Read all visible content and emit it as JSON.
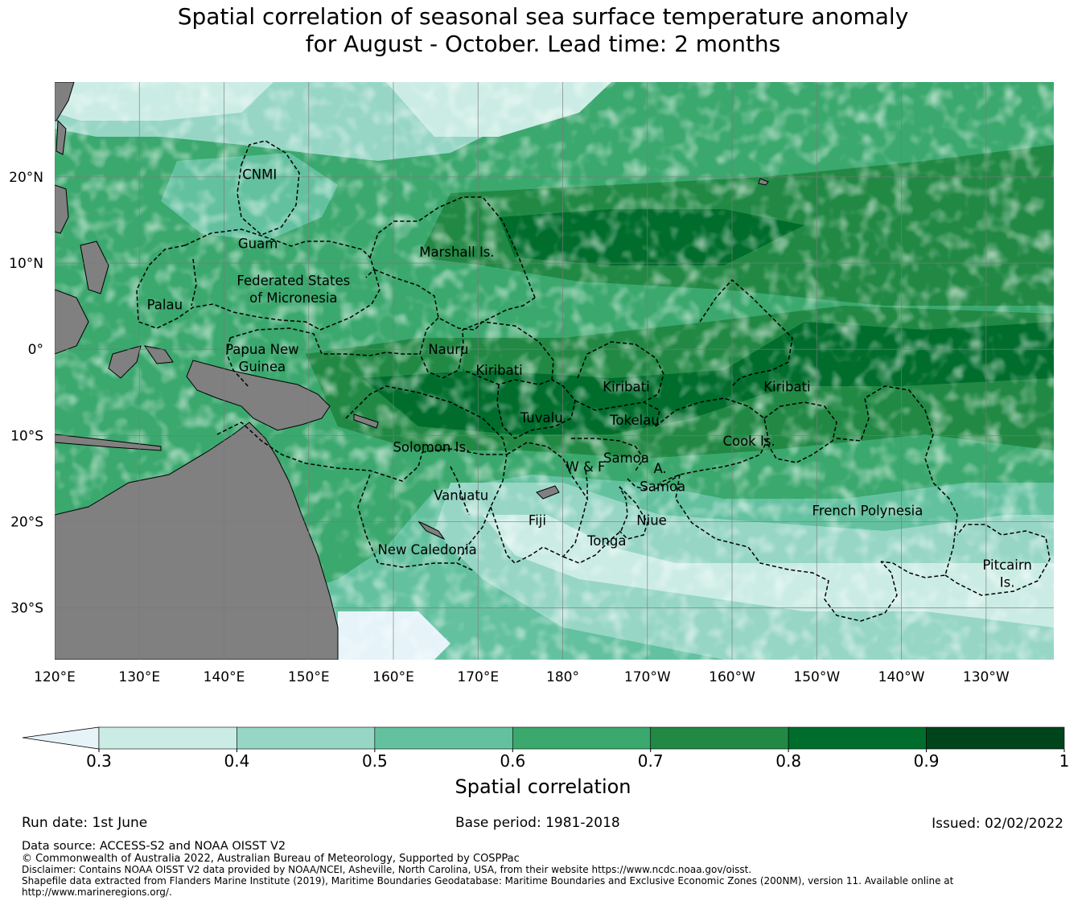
{
  "title_line1": "Spatial correlation of seasonal sea surface temperature anomaly",
  "title_line2": "for August - October. Lead time: 2 months",
  "map": {
    "lon_range": [
      120,
      238
    ],
    "lat_range": [
      -36,
      31
    ],
    "lon_ticks": [
      {
        "lon": 120,
        "label": "120°E"
      },
      {
        "lon": 130,
        "label": "130°E"
      },
      {
        "lon": 140,
        "label": "140°E"
      },
      {
        "lon": 150,
        "label": "150°E"
      },
      {
        "lon": 160,
        "label": "160°E"
      },
      {
        "lon": 170,
        "label": "170°E"
      },
      {
        "lon": 180,
        "label": "180°"
      },
      {
        "lon": 190,
        "label": "170°W"
      },
      {
        "lon": 200,
        "label": "160°W"
      },
      {
        "lon": 210,
        "label": "150°W"
      },
      {
        "lon": 220,
        "label": "140°W"
      },
      {
        "lon": 230,
        "label": "130°W"
      }
    ],
    "lat_ticks": [
      {
        "lat": 20,
        "label": "20°N"
      },
      {
        "lat": 10,
        "label": "10°N"
      },
      {
        "lat": 0,
        "label": "0°"
      },
      {
        "lat": -10,
        "label": "10°S"
      },
      {
        "lat": -20,
        "label": "20°S"
      },
      {
        "lat": -30,
        "label": "30°S"
      }
    ],
    "region_labels": [
      {
        "text": "CNMI",
        "lon": 144.2,
        "lat": 20.3
      },
      {
        "text": "Guam",
        "lon": 144.0,
        "lat": 12.3
      },
      {
        "text": "Marshall Is.",
        "lon": 167.5,
        "lat": 11.3
      },
      {
        "text": "Federated States",
        "lon": 148.2,
        "lat": 8.0
      },
      {
        "text": "of Micronesia",
        "lon": 148.2,
        "lat": 6.0
      },
      {
        "text": "Palau",
        "lon": 133.0,
        "lat": 5.2
      },
      {
        "text": "Nauru",
        "lon": 166.5,
        "lat": 0.0
      },
      {
        "text": "Papua New",
        "lon": 144.5,
        "lat": 0.0
      },
      {
        "text": "Guinea",
        "lon": 144.5,
        "lat": -2.0
      },
      {
        "text": "Kiribati",
        "lon": 172.5,
        "lat": -2.4
      },
      {
        "text": "Kiribati",
        "lon": 187.5,
        "lat": -4.3
      },
      {
        "text": "Kiribati",
        "lon": 206.5,
        "lat": -4.3
      },
      {
        "text": "Tuvalu",
        "lon": 177.5,
        "lat": -7.9
      },
      {
        "text": "Tokelau",
        "lon": 188.5,
        "lat": -8.2
      },
      {
        "text": "Cook Is.",
        "lon": 202.0,
        "lat": -10.6
      },
      {
        "text": "Solomon Is.",
        "lon": 164.5,
        "lat": -11.3
      },
      {
        "text": "Samoa",
        "lon": 187.5,
        "lat": -12.6
      },
      {
        "text": "W & F",
        "lon": 182.7,
        "lat": -13.6
      },
      {
        "text": "A.",
        "lon": 191.5,
        "lat": -13.8
      },
      {
        "text": "Samoa",
        "lon": 191.8,
        "lat": -15.9
      },
      {
        "text": "Vanuatu",
        "lon": 168.0,
        "lat": -16.9
      },
      {
        "text": "French Polynesia",
        "lon": 216.0,
        "lat": -18.7
      },
      {
        "text": "Fiji",
        "lon": 177.0,
        "lat": -19.8
      },
      {
        "text": "Niue",
        "lon": 190.5,
        "lat": -19.8
      },
      {
        "text": "Tonga",
        "lon": 185.2,
        "lat": -22.2
      },
      {
        "text": "New Caledonia",
        "lon": 164.0,
        "lat": -23.2
      },
      {
        "text": "Pitcairn",
        "lon": 232.5,
        "lat": -25.0
      },
      {
        "text": "Is.",
        "lon": 232.5,
        "lat": -27.0
      }
    ],
    "colors": {
      "ocean_lt_0_3": "#e6f4f9",
      "land": "#808080",
      "boundary": "#000000",
      "gridline": "#7a7a7a"
    }
  },
  "colorbar": {
    "label": "Spatial correlation",
    "ticks": [
      "0.3",
      "0.4",
      "0.5",
      "0.6",
      "0.7",
      "0.8",
      "0.9",
      "1"
    ],
    "extend_color": "#e6f4f9",
    "colors": [
      "#cbece4",
      "#97d6c5",
      "#63c1a0",
      "#3ba86e",
      "#228945",
      "#006d2c",
      "#00441b"
    ]
  },
  "footer": {
    "run_date": "Run date: 1st June",
    "base_period": "Base period: 1981-2018",
    "issued": "Issued: 02/02/2022",
    "data_source": "Data source: ACCESS-S2 and NOAA OISST V2",
    "copyright": "© Commonwealth of Australia 2022, Australian Bureau of Meteorology, Supported by COSPPac",
    "disclaimer": "Disclaimer: Contains NOAA OISST V2 data provided by NOAA/NCEI, Asheville, North Carolina, USA, from their website https://www.ncdc.noaa.gov/oisst.",
    "shapefile_line1": "Shapefile data extracted from Flanders Marine Institute (2019), Maritime Boundaries Geodatabase: Maritime Boundaries and Exclusive Economic Zones (200NM), version 11. Available online at",
    "shapefile_line2": "http://www.marineregions.org/."
  }
}
